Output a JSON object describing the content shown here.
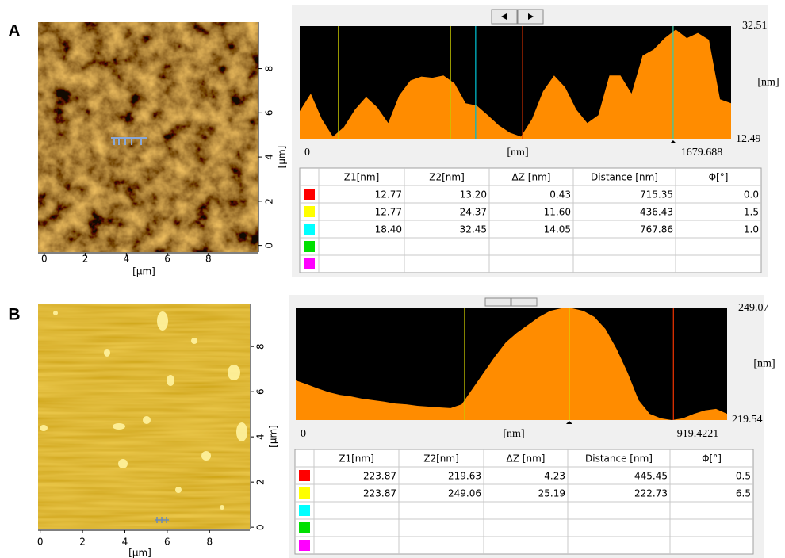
{
  "panels": [
    {
      "label": "A",
      "image": {
        "xlim": [
          -0.3,
          10.4
        ],
        "ylim": [
          -0.3,
          10.1
        ],
        "xticks": [
          0,
          2,
          4,
          6,
          8
        ],
        "yticks": [
          0,
          2,
          4,
          6,
          8
        ],
        "xunit": "[µm]",
        "yunit": "[µm]"
      },
      "profile": {
        "xlim": [
          0,
          1679.688
        ],
        "ylim": [
          12.49,
          32.51
        ],
        "xunit": "[nm]",
        "yunit": "[nm]",
        "values": [
          17.5,
          20.6,
          16.1,
          13.0,
          14.7,
          17.8,
          20.0,
          18.2,
          15.4,
          20.3,
          22.9,
          23.6,
          23.4,
          23.8,
          22.4,
          18.9,
          18.5,
          16.8,
          15.0,
          13.7,
          13.0,
          16.1,
          21.0,
          23.8,
          21.7,
          17.8,
          15.4,
          16.8,
          23.8,
          23.8,
          20.6,
          27.3,
          28.4,
          30.4,
          31.9,
          30.4,
          31.3,
          30.1,
          19.6,
          18.9
        ],
        "color": "#ff8c00",
        "cursors": [
          {
            "x": 151,
            "color": "#c8c800"
          },
          {
            "x": 587,
            "color": "#c8c800"
          },
          {
            "x": 685,
            "color": "#00b8c8"
          },
          {
            "x": 868,
            "color": "#e03000"
          },
          {
            "x": 1454,
            "color": "#40c8a0"
          }
        ],
        "marker": 1454
      },
      "table": {
        "headers": [
          "Z1[nm]",
          "Z2[nm]",
          "ΔZ [nm]",
          "Distance [nm]",
          "Φ[°]"
        ],
        "rows": [
          {
            "color": "#ff0000",
            "cells": [
              "12.77",
              "13.20",
              "0.43",
              "715.35",
              "0.0"
            ]
          },
          {
            "color": "#ffff00",
            "cells": [
              "12.77",
              "24.37",
              "11.60",
              "436.43",
              "1.5"
            ]
          },
          {
            "color": "#00ffff",
            "cells": [
              "18.40",
              "32.45",
              "14.05",
              "767.86",
              "1.0"
            ]
          },
          {
            "color": "#00e000"
          },
          {
            "color": "#ff00ff"
          }
        ]
      }
    },
    {
      "label": "B",
      "image": {
        "xlim": [
          -0.1,
          9.9
        ],
        "ylim": [
          -0.1,
          9.9
        ],
        "xticks": [
          0,
          2,
          4,
          6,
          8
        ],
        "yticks": [
          0,
          2,
          4,
          6,
          8
        ],
        "xunit": "[µm]",
        "yunit": "[µm]"
      },
      "profile": {
        "xlim": [
          0,
          919.4221
        ],
        "ylim": [
          219.54,
          249.07
        ],
        "xunit": "[nm]",
        "yunit": "[nm]",
        "values": [
          230.0,
          229.0,
          227.9,
          226.9,
          226.2,
          225.8,
          225.2,
          224.8,
          224.4,
          223.9,
          223.7,
          223.3,
          223.1,
          222.9,
          222.7,
          223.7,
          227.9,
          232.1,
          236.3,
          240.1,
          242.6,
          244.7,
          246.8,
          248.4,
          249.07,
          249.07,
          248.4,
          246.8,
          243.6,
          238.4,
          232.1,
          224.8,
          221.2,
          220.0,
          219.54,
          220.0,
          221.2,
          222.1,
          222.5,
          221.2
        ],
        "color": "#ff8c00",
        "cursors": [
          {
            "x": 360,
            "color": "#c8c800"
          },
          {
            "x": 583,
            "color": "#d8d800"
          },
          {
            "x": 805,
            "color": "#e03000"
          }
        ],
        "marker": 583
      },
      "table": {
        "headers": [
          "Z1[nm]",
          "Z2[nm]",
          "ΔZ [nm]",
          "Distance [nm]",
          "Φ[°]"
        ],
        "rows": [
          {
            "color": "#ff0000",
            "cells": [
              "223.87",
              "219.63",
              "4.23",
              "445.45",
              "0.5"
            ]
          },
          {
            "color": "#ffff00",
            "cells": [
              "223.87",
              "249.06",
              "25.19",
              "222.73",
              "6.5"
            ]
          },
          {
            "color": "#00ffff"
          },
          {
            "color": "#00e000"
          },
          {
            "color": "#ff00ff"
          }
        ]
      }
    }
  ]
}
